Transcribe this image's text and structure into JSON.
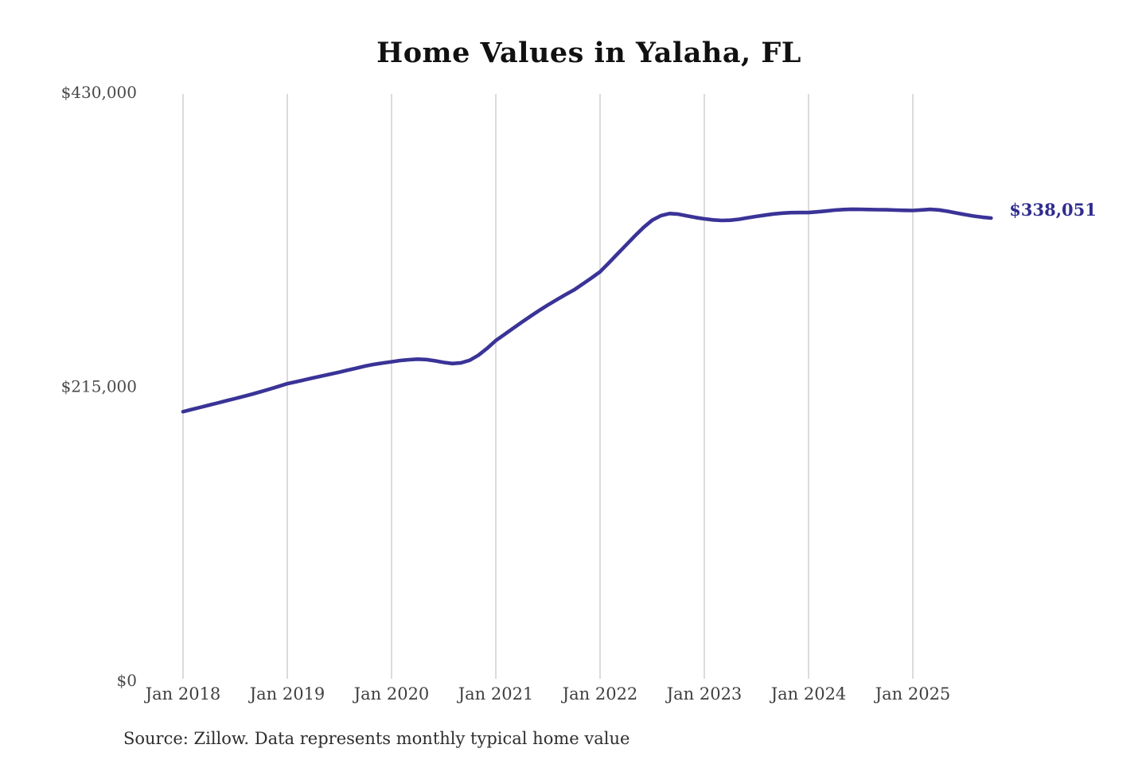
{
  "source_note": "Source: Zillow. Data represents monthly typical home value",
  "chart_data": {
    "type": "line",
    "title": "Home Values in Yalaha, FL",
    "series_name": "Monthly typical home value",
    "x": [
      "2018-01",
      "2018-02",
      "2018-03",
      "2018-04",
      "2018-05",
      "2018-06",
      "2018-07",
      "2018-08",
      "2018-09",
      "2018-10",
      "2018-11",
      "2018-12",
      "2019-01",
      "2019-02",
      "2019-03",
      "2019-04",
      "2019-05",
      "2019-06",
      "2019-07",
      "2019-08",
      "2019-09",
      "2019-10",
      "2019-11",
      "2019-12",
      "2020-01",
      "2020-02",
      "2020-03",
      "2020-04",
      "2020-05",
      "2020-06",
      "2020-07",
      "2020-08",
      "2020-09",
      "2020-10",
      "2020-11",
      "2020-12",
      "2021-01",
      "2021-02",
      "2021-03",
      "2021-04",
      "2021-05",
      "2021-06",
      "2021-07",
      "2021-08",
      "2021-09",
      "2021-10",
      "2021-11",
      "2021-12",
      "2022-01",
      "2022-02",
      "2022-03",
      "2022-04",
      "2022-05",
      "2022-06",
      "2022-07",
      "2022-08",
      "2022-09",
      "2022-10",
      "2022-11",
      "2022-12",
      "2023-01",
      "2023-02",
      "2023-03",
      "2023-04",
      "2023-05",
      "2023-06",
      "2023-07",
      "2023-08",
      "2023-09",
      "2023-10",
      "2023-11",
      "2023-12",
      "2024-01",
      "2024-02",
      "2024-03",
      "2024-04",
      "2024-05",
      "2024-06",
      "2024-07",
      "2024-08",
      "2024-09",
      "2024-10",
      "2024-11",
      "2024-12",
      "2025-01",
      "2025-02",
      "2025-03",
      "2025-04",
      "2025-05",
      "2025-06",
      "2025-07",
      "2025-08",
      "2025-09",
      "2025-10"
    ],
    "values": [
      196500,
      198100,
      199700,
      201300,
      202900,
      204500,
      206100,
      207700,
      209400,
      211200,
      213100,
      215000,
      217000,
      218400,
      219800,
      221200,
      222600,
      224000,
      225400,
      226900,
      228400,
      229900,
      231100,
      232100,
      233000,
      233900,
      234500,
      234900,
      234600,
      233700,
      232500,
      231700,
      232200,
      234100,
      237800,
      242800,
      248500,
      253000,
      257500,
      262000,
      266300,
      270500,
      274500,
      278300,
      282000,
      285500,
      289800,
      294200,
      298800,
      305200,
      311800,
      318400,
      325000,
      331200,
      336500,
      339800,
      341400,
      340900,
      339700,
      338500,
      337500,
      336700,
      336300,
      336500,
      337200,
      338300,
      339300,
      340200,
      341100,
      341700,
      342000,
      342100,
      342100,
      342600,
      343200,
      343900,
      344300,
      344500,
      344400,
      344300,
      344200,
      344100,
      343900,
      343700,
      343600,
      344000,
      344400,
      344000,
      343000,
      341800,
      340600,
      339500,
      338700,
      338051
    ],
    "x_tick_labels": [
      "Jan 2018",
      "Jan 2019",
      "Jan 2020",
      "Jan 2021",
      "Jan 2022",
      "Jan 2023",
      "Jan 2024",
      "Jan 2025"
    ],
    "y_ticks": [
      0,
      215000,
      430000
    ],
    "y_tick_labels": [
      "$0",
      "$215,000",
      "$430,000"
    ],
    "ylim": [
      0,
      430000
    ],
    "grid": "vertical-only",
    "legend": false,
    "end_label": "$338,051",
    "end_value": 338051,
    "line_color": "#3a3397",
    "end_label_color": "#2f2c90",
    "grid_color": "#cccccc",
    "axis_text_color": "#4a4a4a",
    "title_color": "#111111"
  }
}
